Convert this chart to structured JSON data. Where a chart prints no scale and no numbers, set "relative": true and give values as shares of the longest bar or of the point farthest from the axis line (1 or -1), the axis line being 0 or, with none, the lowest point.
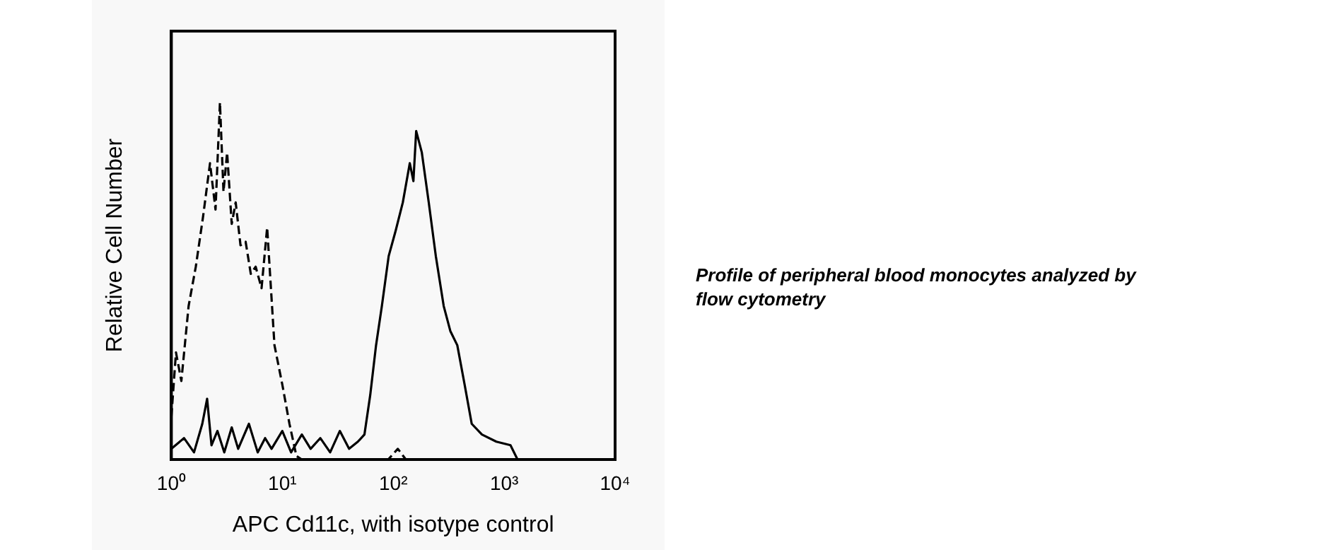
{
  "chart_data": {
    "type": "line",
    "relative": true,
    "log": "x",
    "xlabel": "APC Cd11c, with isotype control",
    "ylabel": "Relative Cell Number",
    "xlim": [
      1,
      10000
    ],
    "xticks": [
      {
        "value": 1,
        "label": "10⁰"
      },
      {
        "value": 10,
        "label": "10¹"
      },
      {
        "value": 100,
        "label": "10²"
      },
      {
        "value": 1000,
        "label": "10³"
      },
      {
        "value": 10000,
        "label": "10⁴"
      }
    ],
    "grid": false,
    "legend": false,
    "marker": "none",
    "annotations": [
      "Profile of peripheral blood monocytes analyzed by flow cytometry"
    ],
    "series": [
      {
        "color": "#000000",
        "line_style": "dashed",
        "x": [
          1,
          1.1,
          1.23,
          1.43,
          1.66,
          1.93,
          2.23,
          2.5,
          2.74,
          2.95,
          3.18,
          3.5,
          3.8,
          4.2,
          4.67,
          5.2,
          5.75,
          6.5,
          7.3,
          8.5,
          10,
          11.6,
          13.4,
          15,
          20,
          40,
          90,
          110,
          130,
          160
        ],
        "values": [
          0.12,
          0.3,
          0.22,
          0.43,
          0.54,
          0.68,
          0.83,
          0.7,
          1,
          0.75,
          0.86,
          0.66,
          0.72,
          0.6,
          0.61,
          0.52,
          0.54,
          0.48,
          0.65,
          0.32,
          0.21,
          0.1,
          0.01,
          0,
          0,
          0,
          0,
          0.03,
          0,
          0
        ]
      },
      {
        "color": "#000000",
        "line_style": "solid",
        "x": [
          1,
          1.3,
          1.6,
          1.9,
          2.1,
          2.3,
          2.6,
          3,
          3.5,
          4,
          5,
          6,
          7,
          8,
          10,
          12,
          15,
          18,
          22,
          27,
          33,
          40,
          48,
          55,
          62,
          70,
          79,
          91,
          105,
          122,
          141,
          152,
          161,
          181,
          209,
          242,
          285,
          327,
          378,
          440,
          510,
          630,
          850,
          1140,
          1320,
          1500
        ],
        "values": [
          0.03,
          0.06,
          0.02,
          0.1,
          0.17,
          0.04,
          0.08,
          0.02,
          0.09,
          0.03,
          0.1,
          0.02,
          0.06,
          0.03,
          0.08,
          0.02,
          0.07,
          0.03,
          0.06,
          0.02,
          0.08,
          0.03,
          0.05,
          0.07,
          0.18,
          0.32,
          0.43,
          0.57,
          0.64,
          0.72,
          0.83,
          0.78,
          0.92,
          0.86,
          0.72,
          0.57,
          0.43,
          0.36,
          0.32,
          0.21,
          0.1,
          0.07,
          0.05,
          0.04,
          0,
          0
        ]
      }
    ]
  }
}
